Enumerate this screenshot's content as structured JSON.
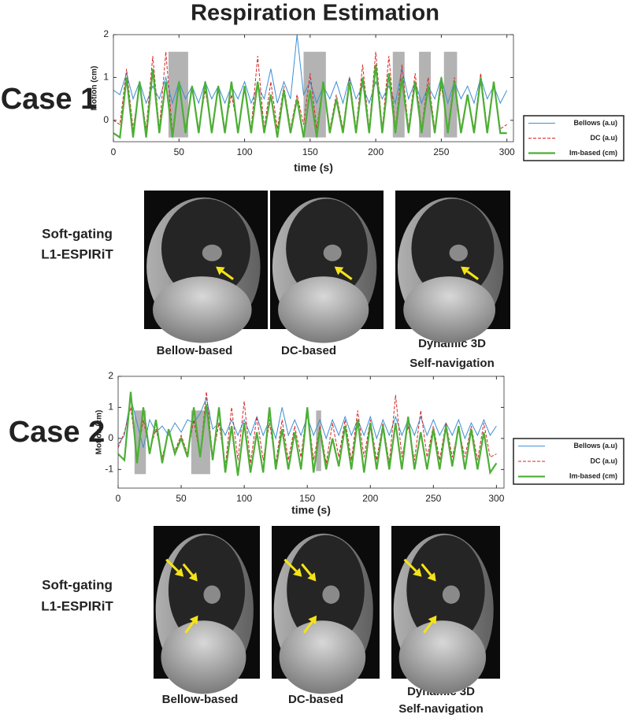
{
  "title": "Respiration Estimation",
  "cases": [
    {
      "label": "Case 1",
      "method": [
        "Soft-gating",
        "L1-ESPIRiT"
      ],
      "captions": [
        [
          "Bellow-based"
        ],
        [
          "DC-based"
        ],
        [
          "Dynamic 3D",
          "Self-navigation"
        ]
      ]
    },
    {
      "label": "Case 2",
      "method": [
        "Soft-gating",
        "L1-ESPIRiT"
      ],
      "captions": [
        [
          "Bellow-based"
        ],
        [
          "DC-based"
        ],
        [
          "Dynamic 3D",
          "Self-navigation"
        ]
      ]
    }
  ],
  "chart_data": [
    {
      "type": "line",
      "xlabel": "time (s)",
      "ylabel": "Motion (cm)",
      "xlim": [
        0,
        305
      ],
      "ylim": [
        -0.5,
        2
      ],
      "xticks": [
        0,
        50,
        100,
        150,
        200,
        250,
        300
      ],
      "yticks": [
        0,
        1,
        2
      ],
      "grid": false,
      "legend": "right",
      "x": [
        0,
        5,
        10,
        15,
        20,
        25,
        30,
        35,
        40,
        45,
        50,
        55,
        60,
        65,
        70,
        75,
        80,
        85,
        90,
        95,
        100,
        105,
        110,
        115,
        120,
        125,
        130,
        135,
        140,
        145,
        150,
        155,
        160,
        165,
        170,
        175,
        180,
        185,
        190,
        195,
        200,
        205,
        210,
        215,
        220,
        225,
        230,
        235,
        240,
        245,
        250,
        255,
        260,
        265,
        270,
        275,
        280,
        285,
        290,
        295,
        300
      ],
      "shaded": [
        {
          "x": [
            42,
            57
          ],
          "y": [
            -0.4,
            1.6
          ]
        },
        {
          "x": [
            145,
            162
          ],
          "y": [
            -0.4,
            1.6
          ]
        },
        {
          "x": [
            213,
            222
          ],
          "y": [
            -0.4,
            1.6
          ]
        },
        {
          "x": [
            233,
            242
          ],
          "y": [
            -0.4,
            1.6
          ]
        },
        {
          "x": [
            252,
            262
          ],
          "y": [
            -0.4,
            1.6
          ]
        }
      ],
      "series": [
        {
          "name": "Bellows (a.u)",
          "color": "#3b8fd3",
          "linewidth": 1,
          "dash": false,
          "values": [
            0.7,
            0.6,
            1.1,
            0.5,
            0.9,
            0.4,
            0.8,
            0.5,
            1.0,
            0.4,
            0.9,
            0.5,
            0.8,
            0.4,
            0.9,
            0.5,
            0.8,
            0.4,
            0.8,
            0.5,
            0.9,
            0.4,
            0.8,
            0.5,
            1.2,
            0.4,
            0.9,
            0.5,
            2.0,
            0.6,
            0.9,
            0.4,
            0.8,
            0.5,
            0.9,
            0.4,
            1.0,
            0.5,
            0.8,
            0.4,
            0.9,
            0.5,
            0.8,
            0.4,
            1.2,
            0.5,
            0.9,
            0.4,
            0.8,
            0.5,
            1.0,
            0.4,
            0.9,
            0.5,
            0.8,
            0.4,
            1.0,
            0.5,
            0.8,
            0.4,
            0.7
          ]
        },
        {
          "name": "DC (a.u)",
          "color": "#d62728",
          "linewidth": 1,
          "dash": true,
          "values": [
            0.0,
            -0.1,
            1.2,
            -0.2,
            0.8,
            -0.2,
            1.5,
            -0.2,
            1.6,
            -0.3,
            0.9,
            -0.2,
            0.8,
            -0.2,
            0.7,
            -0.2,
            0.8,
            -0.2,
            0.6,
            -0.2,
            0.7,
            -0.2,
            1.5,
            -0.2,
            0.9,
            -0.2,
            0.8,
            -0.2,
            0.6,
            -0.1,
            1.1,
            -0.2,
            0.9,
            -0.2,
            0.6,
            -0.2,
            1.0,
            -0.2,
            1.3,
            -0.2,
            1.6,
            -0.2,
            1.5,
            -0.2,
            1.3,
            -0.2,
            1.1,
            -0.2,
            1.0,
            -0.2,
            0.8,
            -0.2,
            1.0,
            -0.2,
            0.6,
            -0.2,
            1.1,
            -0.2,
            0.9,
            -0.2,
            -0.1
          ]
        },
        {
          "name": "Im-based (cm)",
          "color": "#4caf35",
          "linewidth": 2.2,
          "dash": false,
          "values": [
            -0.3,
            -0.4,
            1.0,
            -0.4,
            0.9,
            -0.4,
            1.2,
            -0.3,
            0.9,
            -0.4,
            0.9,
            -0.3,
            0.8,
            -0.3,
            0.9,
            -0.3,
            0.8,
            -0.3,
            0.9,
            -0.3,
            0.8,
            -0.3,
            0.9,
            -0.3,
            0.6,
            -0.4,
            0.7,
            -0.3,
            0.5,
            -0.4,
            0.7,
            -0.4,
            0.9,
            -0.3,
            0.5,
            -0.3,
            0.9,
            -0.3,
            1.0,
            -0.3,
            1.3,
            -0.3,
            1.1,
            -0.3,
            1.0,
            -0.3,
            0.9,
            -0.3,
            0.8,
            -0.3,
            1.0,
            -0.3,
            0.9,
            -0.3,
            0.6,
            -0.3,
            1.0,
            -0.3,
            0.9,
            -0.3,
            -0.3
          ]
        }
      ]
    },
    {
      "type": "line",
      "xlabel": "time (s)",
      "ylabel": "Motion (cm)",
      "xlim": [
        0,
        306
      ],
      "ylim": [
        -1.6,
        2
      ],
      "xticks": [
        0,
        50,
        100,
        150,
        200,
        250,
        300
      ],
      "yticks": [
        -1,
        0,
        1,
        2
      ],
      "grid": false,
      "legend": "right",
      "x": [
        0,
        5,
        10,
        15,
        20,
        25,
        30,
        35,
        40,
        45,
        50,
        55,
        60,
        65,
        70,
        75,
        80,
        85,
        90,
        95,
        100,
        105,
        110,
        115,
        120,
        125,
        130,
        135,
        140,
        145,
        150,
        155,
        160,
        165,
        170,
        175,
        180,
        185,
        190,
        195,
        200,
        205,
        210,
        215,
        220,
        225,
        230,
        235,
        240,
        245,
        250,
        255,
        260,
        265,
        270,
        275,
        280,
        285,
        290,
        295,
        300
      ],
      "shaded": [
        {
          "x": [
            13,
            22
          ],
          "y": [
            -1.15,
            0.9
          ]
        },
        {
          "x": [
            58,
            73
          ],
          "y": [
            -1.15,
            0.9
          ]
        },
        {
          "x": [
            157,
            161
          ],
          "y": [
            -1.05,
            0.9
          ]
        }
      ],
      "series": [
        {
          "name": "Bellows (a.u)",
          "color": "#3b8fd3",
          "linewidth": 1,
          "dash": false,
          "values": [
            -0.2,
            0.1,
            1.3,
            0.5,
            -0.3,
            0.6,
            0.2,
            0.4,
            0.1,
            0.5,
            0.2,
            0.6,
            0.5,
            0.8,
            1.3,
            0.3,
            0.5,
            0.1,
            0.6,
            0.1,
            0.6,
            0.1,
            0.7,
            0.1,
            0.6,
            0.0,
            1.0,
            0.1,
            0.6,
            0.1,
            0.7,
            0.1,
            0.6,
            0.0,
            0.6,
            0.1,
            0.7,
            0.1,
            0.6,
            0.1,
            0.7,
            0.0,
            0.6,
            0.1,
            0.7,
            0.1,
            0.6,
            0.1,
            0.7,
            0.1,
            0.6,
            0.1,
            0.5,
            0.1,
            0.6,
            0.0,
            0.5,
            0.1,
            0.6,
            0.1,
            0.4
          ]
        },
        {
          "name": "DC (a.u)",
          "color": "#d62728",
          "linewidth": 1,
          "dash": true,
          "values": [
            -0.3,
            0.2,
            1.0,
            -0.6,
            0.6,
            -0.4,
            0.3,
            -0.6,
            0.2,
            -0.4,
            0.1,
            -0.5,
            0.6,
            -0.6,
            1.5,
            -0.6,
            0.5,
            -0.9,
            1.0,
            -0.7,
            1.2,
            -0.8,
            0.7,
            -0.7,
            0.5,
            -0.8,
            0.6,
            -0.7,
            0.4,
            -0.6,
            1.0,
            -0.7,
            0.4,
            -0.8,
            0.5,
            -0.6,
            0.6,
            -0.7,
            0.9,
            -0.6,
            0.6,
            -0.7,
            0.5,
            -0.8,
            1.4,
            -0.6,
            0.4,
            -0.7,
            0.9,
            -0.6,
            0.4,
            -0.7,
            0.5,
            -0.6,
            0.3,
            -0.6,
            0.4,
            -0.7,
            0.5,
            -0.6,
            -0.5
          ]
        },
        {
          "name": "Im-based (cm)",
          "color": "#4caf35",
          "linewidth": 2.2,
          "dash": false,
          "values": [
            -0.5,
            -0.7,
            1.5,
            -0.8,
            1.0,
            -0.5,
            0.6,
            -0.8,
            0.3,
            -0.5,
            0.0,
            -0.6,
            1.0,
            -0.6,
            1.1,
            -0.7,
            1.0,
            -1.1,
            0.4,
            -1.2,
            0.5,
            -1.1,
            0.2,
            -1.1,
            1.0,
            -1.0,
            0.3,
            -1.0,
            0.2,
            -1.0,
            1.0,
            -1.1,
            0.3,
            -1.0,
            0.0,
            -0.9,
            0.4,
            -1.0,
            0.6,
            -1.1,
            0.5,
            -1.0,
            0.4,
            -1.0,
            0.5,
            -1.0,
            0.7,
            -1.0,
            0.2,
            -1.0,
            0.3,
            -1.0,
            0.4,
            -0.9,
            0.4,
            -1.0,
            0.3,
            -1.0,
            0.2,
            -1.1,
            -0.8
          ]
        }
      ]
    }
  ]
}
